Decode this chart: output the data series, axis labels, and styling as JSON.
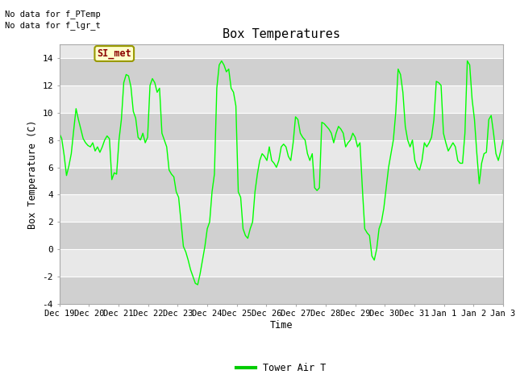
{
  "title": "Box Temperatures",
  "ylabel": "Box Temperature (C)",
  "xlabel": "Time",
  "no_data_text1": "No data for f_PTemp",
  "no_data_text2": "No data for f_lgr_t",
  "si_met_label": "SI_met",
  "legend_label": "Tower Air T",
  "line_color": "#00FF00",
  "legend_line_color": "#00CC00",
  "ylim": [
    -4,
    15
  ],
  "yticks": [
    -4,
    -2,
    0,
    2,
    4,
    6,
    8,
    10,
    12,
    14
  ],
  "bg_color": "#ffffff",
  "plot_bg_light": "#e8e8e8",
  "plot_bg_dark": "#d0d0d0",
  "x_labels": [
    "Dec 19",
    "Dec 20",
    "Dec 21",
    "Dec 22",
    "Dec 23",
    "Dec 24",
    "Dec 25",
    "Dec 26",
    "Dec 27",
    "Dec 28",
    "Dec 29",
    "Dec 30",
    "Dec 31",
    "Jan 1",
    "Jan 2",
    "Jan 3"
  ],
  "temp_data": [
    8.5,
    8.1,
    6.9,
    5.4,
    6.1,
    7.0,
    8.7,
    10.3,
    9.5,
    8.8,
    8.1,
    7.8,
    7.6,
    7.5,
    7.8,
    7.2,
    7.5,
    7.1,
    7.5,
    8.0,
    8.3,
    8.1,
    5.1,
    5.6,
    5.5,
    8.0,
    9.5,
    12.2,
    12.8,
    12.7,
    11.9,
    10.1,
    9.6,
    8.2,
    8.0,
    8.5,
    7.8,
    8.2,
    12.0,
    12.5,
    12.2,
    11.5,
    11.8,
    8.5,
    8.0,
    7.5,
    5.8,
    5.5,
    5.3,
    4.2,
    3.8,
    2.0,
    0.2,
    -0.2,
    -0.8,
    -1.5,
    -2.0,
    -2.5,
    -2.6,
    -1.8,
    -0.8,
    0.2,
    1.5,
    2.0,
    4.2,
    5.5,
    11.8,
    13.5,
    13.8,
    13.5,
    13.0,
    13.2,
    11.8,
    11.5,
    10.5,
    4.2,
    3.8,
    1.5,
    1.0,
    0.8,
    1.5,
    2.0,
    4.2,
    5.5,
    6.5,
    7.0,
    6.8,
    6.5,
    7.5,
    6.5,
    6.3,
    6.0,
    6.5,
    7.5,
    7.7,
    7.5,
    6.8,
    6.5,
    7.8,
    9.7,
    9.5,
    8.5,
    8.2,
    8.0,
    7.0,
    6.5,
    7.0,
    4.5,
    4.3,
    4.5,
    9.3,
    9.2,
    9.0,
    8.8,
    8.5,
    7.8,
    8.5,
    9.0,
    8.8,
    8.5,
    7.5,
    7.8,
    8.0,
    8.5,
    8.2,
    7.5,
    7.8,
    4.5,
    1.5,
    1.2,
    1.0,
    -0.5,
    -0.8,
    0.0,
    1.5,
    2.0,
    3.0,
    4.5,
    6.0,
    7.0,
    8.0,
    10.0,
    13.2,
    12.8,
    11.5,
    9.0,
    8.0,
    7.5,
    8.0,
    6.5,
    6.0,
    5.8,
    6.5,
    7.8,
    7.5,
    7.8,
    8.2,
    9.5,
    12.3,
    12.2,
    12.0,
    8.5,
    7.8,
    7.2,
    7.5,
    7.8,
    7.5,
    6.5,
    6.3,
    6.3,
    8.5,
    13.8,
    13.5,
    11.0,
    9.5,
    7.0,
    4.8,
    6.3,
    7.0,
    7.1,
    9.5,
    9.8,
    8.5,
    7.0,
    6.5,
    7.2,
    8.0
  ]
}
